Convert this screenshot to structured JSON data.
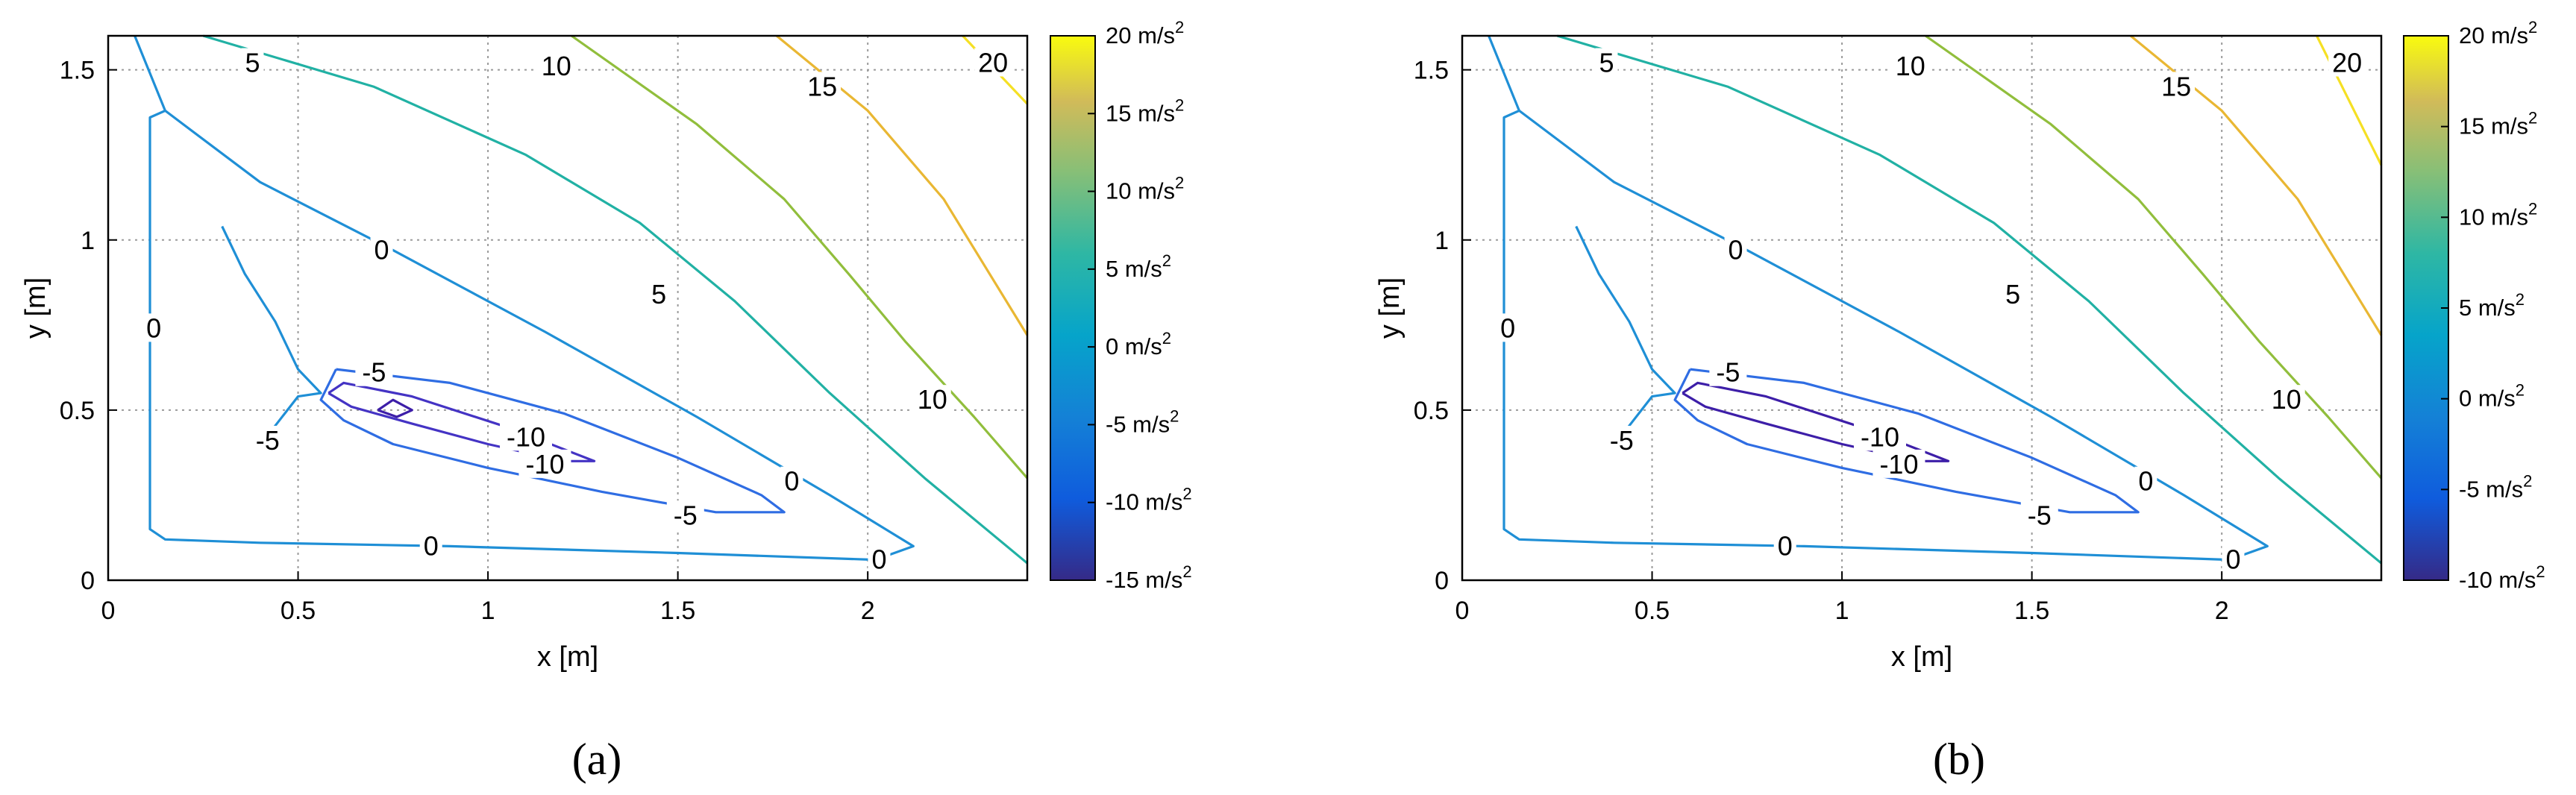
{
  "chart_data": [
    {
      "type": "contour",
      "panel_label": "(a)",
      "xlabel": "x [m]",
      "ylabel": "y [m]",
      "xlim": [
        0,
        2.42
      ],
      "ylim": [
        0,
        1.6
      ],
      "x_ticks": [
        "0",
        "0.5",
        "1",
        "1.5",
        "2"
      ],
      "y_ticks": [
        "0",
        "0.5",
        "1",
        "1.5"
      ],
      "grid": true,
      "colorbar": {
        "range": [
          -15,
          20
        ],
        "labels": [
          "20 m/s",
          "15 m/s",
          "10 m/s",
          "5 m/s",
          "0 m/s",
          "-5 m/s",
          "-10 m/s",
          "-15 m/s"
        ],
        "superscript": "2",
        "colormap": "parula"
      },
      "series": [
        {
          "name": "20",
          "color": "#f5e024",
          "points": [
            [
              2.25,
              1.6
            ],
            [
              2.42,
              1.4
            ]
          ]
        },
        {
          "name": "15",
          "color": "#e9b733",
          "points": [
            [
              1.76,
              1.6
            ],
            [
              2.0,
              1.38
            ],
            [
              2.2,
              1.12
            ],
            [
              2.42,
              0.72
            ]
          ]
        },
        {
          "name": "10",
          "color": "#91be3c",
          "points": [
            [
              1.22,
              1.6
            ],
            [
              1.55,
              1.34
            ],
            [
              1.78,
              1.12
            ],
            [
              1.95,
              0.9
            ],
            [
              2.1,
              0.7
            ],
            [
              2.28,
              0.48
            ],
            [
              2.42,
              0.3
            ]
          ]
        },
        {
          "name": "5",
          "color": "#21b1a4",
          "points": [
            [
              0.25,
              1.6
            ],
            [
              0.7,
              1.45
            ],
            [
              1.1,
              1.25
            ],
            [
              1.4,
              1.05
            ],
            [
              1.65,
              0.82
            ],
            [
              1.9,
              0.55
            ],
            [
              2.15,
              0.3
            ],
            [
              2.42,
              0.05
            ]
          ]
        },
        {
          "name": "0",
          "color": "#1f8fd6",
          "points": [
            [
              0.07,
              1.6
            ],
            [
              0.15,
              1.38
            ],
            [
              0.4,
              1.17
            ],
            [
              0.75,
              0.97
            ],
            [
              1.15,
              0.73
            ],
            [
              1.55,
              0.48
            ],
            [
              1.9,
              0.25
            ],
            [
              2.12,
              0.1
            ],
            [
              2.02,
              0.06
            ],
            [
              1.5,
              0.08
            ],
            [
              0.9,
              0.1
            ],
            [
              0.4,
              0.11
            ],
            [
              0.15,
              0.12
            ],
            [
              0.11,
              0.15
            ],
            [
              0.11,
              1.36
            ],
            [
              0.15,
              1.38
            ]
          ]
        },
        {
          "name": "0",
          "color": "#1f8fd6",
          "points": [
            [
              0.3,
              1.04
            ],
            [
              0.36,
              0.9
            ],
            [
              0.44,
              0.76
            ],
            [
              0.5,
              0.62
            ],
            [
              0.56,
              0.55
            ],
            [
              0.5,
              0.54
            ],
            [
              0.43,
              0.44
            ]
          ]
        },
        {
          "name": "-5",
          "color": "#2f6de3",
          "points": [
            [
              0.6,
              0.62
            ],
            [
              0.9,
              0.58
            ],
            [
              1.2,
              0.49
            ],
            [
              1.5,
              0.36
            ],
            [
              1.72,
              0.25
            ],
            [
              1.78,
              0.2
            ],
            [
              1.6,
              0.2
            ],
            [
              1.3,
              0.26
            ],
            [
              1.0,
              0.33
            ],
            [
              0.75,
              0.4
            ],
            [
              0.62,
              0.47
            ],
            [
              0.56,
              0.53
            ],
            [
              0.6,
              0.62
            ]
          ]
        },
        {
          "name": "-10",
          "color": "#4433c4",
          "points": [
            [
              0.58,
              0.55
            ],
            [
              0.62,
              0.58
            ],
            [
              0.8,
              0.54
            ],
            [
              1.05,
              0.45
            ],
            [
              1.28,
              0.35
            ],
            [
              1.2,
              0.35
            ],
            [
              1.0,
              0.4
            ],
            [
              0.8,
              0.46
            ],
            [
              0.64,
              0.51
            ],
            [
              0.58,
              0.55
            ]
          ]
        },
        {
          "name": "-15",
          "color": "#3d1ea8",
          "points": [
            [
              0.71,
              0.5
            ],
            [
              0.75,
              0.53
            ],
            [
              0.8,
              0.5
            ],
            [
              0.76,
              0.48
            ],
            [
              0.71,
              0.5
            ]
          ]
        }
      ],
      "contour_labels": [
        {
          "text": "5",
          "x": 0.38,
          "y": 1.52
        },
        {
          "text": "10",
          "x": 1.18,
          "y": 1.51
        },
        {
          "text": "15",
          "x": 1.88,
          "y": 1.45
        },
        {
          "text": "20",
          "x": 2.33,
          "y": 1.52
        },
        {
          "text": "0",
          "x": 0.72,
          "y": 0.97
        },
        {
          "text": "5",
          "x": 1.45,
          "y": 0.84
        },
        {
          "text": "10",
          "x": 2.17,
          "y": 0.53
        },
        {
          "text": "0",
          "x": 0.12,
          "y": 0.74
        },
        {
          "text": "-5",
          "x": 0.7,
          "y": 0.61
        },
        {
          "text": "-5",
          "x": 0.42,
          "y": 0.41
        },
        {
          "text": "-10",
          "x": 1.1,
          "y": 0.42
        },
        {
          "text": "-10",
          "x": 1.15,
          "y": 0.34
        },
        {
          "text": "0",
          "x": 1.8,
          "y": 0.29
        },
        {
          "text": "-5",
          "x": 1.52,
          "y": 0.19
        },
        {
          "text": "0",
          "x": 0.85,
          "y": 0.1
        },
        {
          "text": "0",
          "x": 2.03,
          "y": 0.06
        }
      ]
    },
    {
      "type": "contour",
      "panel_label": "(b)",
      "xlabel": "x [m]",
      "ylabel": "y [m]",
      "xlim": [
        0,
        2.42
      ],
      "ylim": [
        0,
        1.6
      ],
      "x_ticks": [
        "0",
        "0.5",
        "1",
        "1.5",
        "2"
      ],
      "y_ticks": [
        "0",
        "0.5",
        "1",
        "1.5"
      ],
      "grid": true,
      "colorbar": {
        "range": [
          -10,
          20
        ],
        "labels": [
          "20 m/s",
          "15 m/s",
          "10 m/s",
          "5 m/s",
          "0 m/s",
          "-5 m/s",
          "-10 m/s"
        ],
        "superscript": "2",
        "colormap": "parula"
      },
      "series": [
        {
          "name": "20",
          "color": "#f5e024",
          "points": [
            [
              2.25,
              1.6
            ],
            [
              2.42,
              1.22
            ]
          ]
        },
        {
          "name": "15",
          "color": "#e9b733",
          "points": [
            [
              1.76,
              1.6
            ],
            [
              2.0,
              1.38
            ],
            [
              2.2,
              1.12
            ],
            [
              2.42,
              0.72
            ]
          ]
        },
        {
          "name": "10",
          "color": "#91be3c",
          "points": [
            [
              1.22,
              1.6
            ],
            [
              1.55,
              1.34
            ],
            [
              1.78,
              1.12
            ],
            [
              1.95,
              0.9
            ],
            [
              2.1,
              0.7
            ],
            [
              2.28,
              0.48
            ],
            [
              2.42,
              0.3
            ]
          ]
        },
        {
          "name": "5",
          "color": "#21b1a4",
          "points": [
            [
              0.25,
              1.6
            ],
            [
              0.7,
              1.45
            ],
            [
              1.1,
              1.25
            ],
            [
              1.4,
              1.05
            ],
            [
              1.65,
              0.82
            ],
            [
              1.9,
              0.55
            ],
            [
              2.15,
              0.3
            ],
            [
              2.42,
              0.05
            ]
          ]
        },
        {
          "name": "0",
          "color": "#1f8fd6",
          "points": [
            [
              0.07,
              1.6
            ],
            [
              0.15,
              1.38
            ],
            [
              0.4,
              1.17
            ],
            [
              0.75,
              0.97
            ],
            [
              1.15,
              0.73
            ],
            [
              1.55,
              0.48
            ],
            [
              1.9,
              0.25
            ],
            [
              2.12,
              0.1
            ],
            [
              2.02,
              0.06
            ],
            [
              1.5,
              0.08
            ],
            [
              0.9,
              0.1
            ],
            [
              0.4,
              0.11
            ],
            [
              0.15,
              0.12
            ],
            [
              0.11,
              0.15
            ],
            [
              0.11,
              1.36
            ],
            [
              0.15,
              1.38
            ]
          ]
        },
        {
          "name": "0",
          "color": "#1f8fd6",
          "points": [
            [
              0.3,
              1.04
            ],
            [
              0.36,
              0.9
            ],
            [
              0.44,
              0.76
            ],
            [
              0.5,
              0.62
            ],
            [
              0.56,
              0.55
            ],
            [
              0.5,
              0.54
            ],
            [
              0.43,
              0.44
            ]
          ]
        },
        {
          "name": "-5",
          "color": "#2f6de3",
          "points": [
            [
              0.6,
              0.62
            ],
            [
              0.9,
              0.58
            ],
            [
              1.2,
              0.49
            ],
            [
              1.5,
              0.36
            ],
            [
              1.72,
              0.25
            ],
            [
              1.78,
              0.2
            ],
            [
              1.6,
              0.2
            ],
            [
              1.3,
              0.26
            ],
            [
              1.0,
              0.33
            ],
            [
              0.75,
              0.4
            ],
            [
              0.62,
              0.47
            ],
            [
              0.56,
              0.53
            ],
            [
              0.6,
              0.62
            ]
          ]
        },
        {
          "name": "-10",
          "color": "#3d1ea8",
          "points": [
            [
              0.58,
              0.55
            ],
            [
              0.62,
              0.58
            ],
            [
              0.8,
              0.54
            ],
            [
              1.05,
              0.45
            ],
            [
              1.28,
              0.35
            ],
            [
              1.2,
              0.35
            ],
            [
              1.0,
              0.4
            ],
            [
              0.8,
              0.46
            ],
            [
              0.64,
              0.51
            ],
            [
              0.58,
              0.55
            ]
          ]
        }
      ],
      "contour_labels": [
        {
          "text": "5",
          "x": 0.38,
          "y": 1.52
        },
        {
          "text": "10",
          "x": 1.18,
          "y": 1.51
        },
        {
          "text": "15",
          "x": 1.88,
          "y": 1.45
        },
        {
          "text": "20",
          "x": 2.33,
          "y": 1.52
        },
        {
          "text": "0",
          "x": 0.72,
          "y": 0.97
        },
        {
          "text": "5",
          "x": 1.45,
          "y": 0.84
        },
        {
          "text": "10",
          "x": 2.17,
          "y": 0.53
        },
        {
          "text": "0",
          "x": 0.12,
          "y": 0.74
        },
        {
          "text": "-5",
          "x": 0.7,
          "y": 0.61
        },
        {
          "text": "-5",
          "x": 0.42,
          "y": 0.41
        },
        {
          "text": "-10",
          "x": 1.1,
          "y": 0.42
        },
        {
          "text": "-10",
          "x": 1.15,
          "y": 0.34
        },
        {
          "text": "0",
          "x": 1.8,
          "y": 0.29
        },
        {
          "text": "-5",
          "x": 1.52,
          "y": 0.19
        },
        {
          "text": "0",
          "x": 0.85,
          "y": 0.1
        },
        {
          "text": "0",
          "x": 2.03,
          "y": 0.06
        }
      ]
    }
  ]
}
